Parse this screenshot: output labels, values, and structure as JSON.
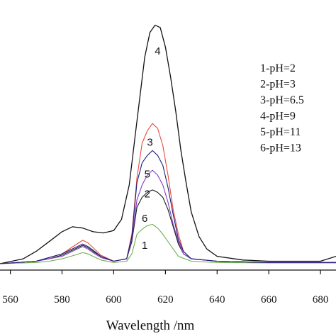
{
  "chart_data": {
    "type": "line",
    "xlabel": "Wavelength /nm",
    "ylabel": "",
    "title": "",
    "xlim": [
      556,
      686
    ],
    "ylim": [
      0,
      100
    ],
    "grid": false,
    "x_ticks": [
      560,
      580,
      600,
      620,
      640,
      660,
      680
    ],
    "x_tick_labels": [
      "560",
      "580",
      "600",
      "620",
      "640",
      "660",
      "680"
    ],
    "legend": {
      "placement": "right",
      "entries": [
        "1-pH=2",
        "2-pH=3",
        "3-pH=6.5",
        "4-pH=9",
        "5-pH=11",
        "6-pH=13"
      ]
    },
    "series": [
      {
        "name": "1-pH=2",
        "label": "1",
        "color": "#6ab04c",
        "x": [
          556,
          570,
          575,
          580,
          585,
          588,
          590,
          592,
          595,
          600,
          605,
          607,
          609,
          611,
          613,
          615,
          617,
          619,
          621,
          623,
          625,
          630,
          640,
          660,
          680,
          686
        ],
        "y": [
          0,
          0.5,
          1,
          2,
          3.5,
          4.5,
          4,
          3,
          1.5,
          0.5,
          1,
          4,
          12,
          14,
          15.5,
          16,
          14.5,
          12,
          9,
          6,
          3,
          1,
          0.5,
          0.3,
          0.3,
          0.3
        ]
      },
      {
        "name": "2-pH=3",
        "label": "2",
        "color": "#1a1a1a",
        "x": [
          556,
          570,
          575,
          580,
          585,
          588,
          590,
          592,
          595,
          600,
          605,
          607,
          609,
          611,
          613,
          615,
          617,
          619,
          621,
          623,
          625,
          627,
          630,
          640,
          660,
          680,
          686
        ],
        "y": [
          0,
          1,
          2,
          3.5,
          6,
          7.5,
          6.5,
          5,
          3,
          1,
          2,
          9,
          23,
          27,
          29,
          30,
          29,
          27,
          22,
          15,
          8,
          4,
          2,
          1,
          0.5,
          0.5,
          0.5
        ]
      },
      {
        "name": "3-pH=6.5",
        "label": "3",
        "color": "#e74c3c",
        "x": [
          556,
          570,
          575,
          580,
          585,
          588,
          590,
          592,
          595,
          600,
          605,
          607,
          609,
          611,
          613,
          615,
          617,
          619,
          621,
          623,
          625,
          627,
          630,
          640,
          660,
          680,
          686
        ],
        "y": [
          0,
          1,
          2.5,
          4,
          7.5,
          9.5,
          8.5,
          6.5,
          3.5,
          1,
          2,
          12,
          35,
          49,
          54,
          57,
          55,
          48,
          36,
          22,
          12,
          5,
          2,
          1,
          0.5,
          0.5,
          0.5
        ]
      },
      {
        "name": "4-pH=9",
        "label": "4",
        "color": "#111111",
        "x": [
          556,
          565,
          570,
          575,
          580,
          584,
          588,
          592,
          596,
          600,
          603,
          606,
          609,
          612,
          614,
          616,
          618,
          620,
          622,
          624,
          626,
          628,
          630,
          633,
          636,
          640,
          650,
          660,
          670,
          680,
          686
        ],
        "y": [
          0,
          2,
          5,
          9,
          13,
          15,
          14.5,
          13,
          12.5,
          13.5,
          18,
          32,
          58,
          84,
          94,
          97,
          96,
          88,
          76,
          62,
          46,
          33,
          21,
          11,
          6,
          3,
          1.5,
          1,
          1,
          1,
          3
        ]
      },
      {
        "name": "5-pH=11",
        "label": "5",
        "color": "#7d3cc8",
        "x": [
          556,
          570,
          575,
          580,
          585,
          588,
          590,
          592,
          595,
          600,
          605,
          607,
          609,
          611,
          613,
          615,
          617,
          619,
          621,
          623,
          625,
          627,
          630,
          640,
          660,
          680,
          686
        ],
        "y": [
          0,
          1,
          2,
          3,
          5.5,
          7,
          6,
          4.5,
          2.5,
          1,
          2,
          10,
          26,
          32,
          36,
          38,
          36,
          32,
          25,
          16,
          9,
          4,
          2,
          1,
          0.5,
          0.5,
          0.5
        ]
      },
      {
        "name": "6-pH=13",
        "label": "6",
        "color": "#1e1e7a",
        "x": [
          556,
          570,
          575,
          580,
          585,
          588,
          590,
          592,
          595,
          600,
          605,
          607,
          609,
          611,
          613,
          615,
          617,
          619,
          621,
          623,
          625,
          627,
          630,
          640,
          660,
          680,
          686
        ],
        "y": [
          0,
          1,
          2.5,
          4,
          6.5,
          8,
          7,
          5.5,
          3,
          1,
          2,
          11,
          33,
          41,
          44,
          46,
          44,
          40,
          31,
          20,
          10,
          5,
          2,
          1,
          0.5,
          0.5,
          0.5
        ]
      }
    ]
  }
}
